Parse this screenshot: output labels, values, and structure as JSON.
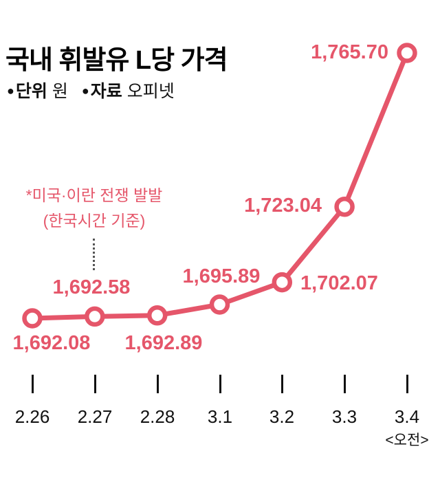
{
  "header": {
    "title": "국내 휘발유 L당 가격",
    "bullet": "●",
    "unit_label": "단위",
    "unit_value": "원",
    "source_label": "자료",
    "source_value": "오피넷"
  },
  "annotation": {
    "line1": "*미국·이란 전쟁 발발",
    "line2": "(한국시간 기준)"
  },
  "axis": {
    "sublabel": "<오전>"
  },
  "colors": {
    "accent": "#e5566a",
    "text": "#111111"
  },
  "chart_data": {
    "type": "line",
    "title": "국내 휘발유 L당 가격",
    "unit": "원",
    "source": "오피넷",
    "categories": [
      "2.26",
      "2.27",
      "2.28",
      "3.1",
      "3.2",
      "3.3",
      "3.4"
    ],
    "values": [
      1692.08,
      1692.58,
      1692.89,
      1695.89,
      1702.07,
      1723.04,
      1765.7
    ],
    "point_labels": [
      "1,692.08",
      "1,692.58",
      "1,692.89",
      "1,695.89",
      "1,702.07",
      "1,723.04",
      "1,765.70"
    ],
    "ylim": [
      1690,
      1770
    ],
    "grid": false,
    "legend_position": "none",
    "annotation_text": "*미국·이란 전쟁 발발 (한국시간 기준)",
    "annotation_target_category": "2.27",
    "last_point_note": "<오전>"
  }
}
